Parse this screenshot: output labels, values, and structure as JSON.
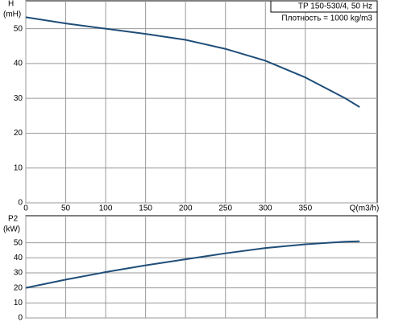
{
  "chart_data": [
    {
      "type": "line",
      "title": "TP 150-530/4, 50 Hz",
      "subtitle": "Плотность = 1000 kg/m3",
      "ylabel": "H",
      "ylabel_unit": "(mH)",
      "xlabel": "Q(m3/h)",
      "x": [
        0,
        50,
        100,
        150,
        200,
        250,
        300,
        350,
        400,
        418
      ],
      "series": [
        {
          "color": "#1f4e79",
          "values": [
            53.3,
            51.5,
            50,
            48.5,
            46.8,
            44.2,
            40.8,
            36,
            30,
            27.5
          ]
        }
      ],
      "xlim": [
        0,
        440
      ],
      "xticks": [
        0,
        50,
        100,
        150,
        200,
        250,
        300,
        350
      ],
      "ylim": [
        0,
        58
      ],
      "yticks": [
        0,
        10,
        20,
        30,
        40,
        50
      ],
      "grid": true
    },
    {
      "type": "line",
      "ylabel": "P2",
      "ylabel_unit": "(kW)",
      "x": [
        0,
        50,
        100,
        150,
        200,
        250,
        300,
        350,
        400,
        418
      ],
      "series": [
        {
          "color": "#1f4e79",
          "values": [
            20,
            25.5,
            30.5,
            35,
            39,
            43,
            46.5,
            49,
            50.7,
            51
          ]
        }
      ],
      "xlim": [
        0,
        440
      ],
      "ylim": [
        0,
        68
      ],
      "yticks": [
        0,
        10,
        20,
        30,
        40,
        50
      ],
      "grid": true
    }
  ]
}
